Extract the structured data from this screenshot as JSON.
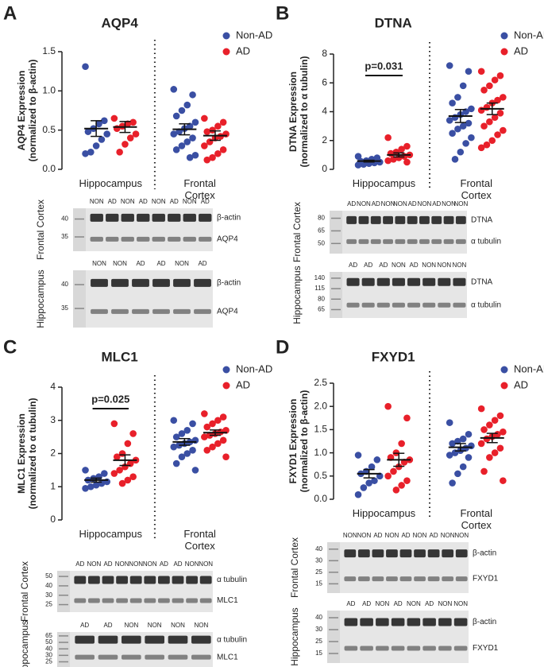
{
  "chart_data": [
    {
      "type": "strip",
      "label": "A",
      "title": "AQP4",
      "ylabel": "AQP4 Expression",
      "ylabel_note": "(normalized to β-actin)",
      "categories": [
        "Hippocampus",
        "Frontal Cortex"
      ],
      "ylim": [
        0,
        1.5
      ],
      "yticks": [
        {
          "value": 0,
          "label": "0.0"
        },
        0.5,
        {
          "value": 1,
          "label": "1.0"
        },
        1.5
      ],
      "series": [
        {
          "name": "Non-AD",
          "color": "#3a4fa3",
          "values": [
            [
              1.31,
              0.62,
              0.58,
              0.52,
              0.48,
              0.45,
              0.38,
              0.3,
              0.22,
              0.2
            ],
            [
              1.02,
              0.95,
              0.82,
              0.75,
              0.68,
              0.6,
              0.55,
              0.52,
              0.48,
              0.45,
              0.4,
              0.35,
              0.3,
              0.25,
              0.18,
              0.15
            ]
          ],
          "mean": [
            0.52,
            0.51
          ],
          "sem": [
            0.1,
            0.07
          ]
        },
        {
          "name": "AD",
          "color": "#e8202a",
          "values": [
            [
              0.65,
              0.6,
              0.58,
              0.55,
              0.52,
              0.45,
              0.4,
              0.32,
              0.22
            ],
            [
              0.65,
              0.6,
              0.55,
              0.5,
              0.48,
              0.45,
              0.42,
              0.4,
              0.35,
              0.3,
              0.25,
              0.2,
              0.15,
              0.12
            ]
          ],
          "mean": [
            0.54,
            0.43
          ],
          "sem": [
            0.07,
            0.06
          ]
        }
      ]
    },
    {
      "type": "strip",
      "label": "B",
      "title": "DTNA",
      "ylabel": "DTNA Expression",
      "ylabel_note": "(normalized to α tubulin)",
      "categories": [
        "Hippocampus",
        "Frontal Cortex"
      ],
      "ylim": [
        0,
        8
      ],
      "yticks": [
        0,
        2,
        4,
        6,
        8
      ],
      "annotation": "p=0.031",
      "series": [
        {
          "name": "Non-AD",
          "color": "#3a4fa3",
          "values": [
            [
              0.9,
              0.8,
              0.7,
              0.6,
              0.55,
              0.5,
              0.45,
              0.4,
              0.35,
              0.3
            ],
            [
              7.2,
              6.8,
              5.8,
              5.0,
              4.6,
              4.2,
              4.0,
              3.8,
              3.6,
              3.4,
              3.2,
              3.0,
              2.8,
              2.5,
              2.2,
              1.8,
              1.2,
              0.7
            ]
          ],
          "mean": [
            0.57,
            3.7
          ],
          "sem": [
            0.06,
            0.45
          ]
        },
        {
          "name": "AD",
          "color": "#e8202a",
          "values": [
            [
              2.2,
              1.6,
              1.4,
              1.2,
              1.1,
              1.0,
              0.9,
              0.8,
              0.7,
              0.6,
              0.5
            ],
            [
              6.8,
              6.5,
              6.2,
              5.8,
              5.5,
              5.0,
              4.8,
              4.6,
              4.3,
              4.1,
              3.9,
              3.6,
              3.3,
              3.0,
              2.7,
              2.4,
              2.0,
              1.7,
              1.5
            ]
          ],
          "mean": [
            1.0,
            4.2
          ],
          "sem": [
            0.14,
            0.4
          ]
        }
      ]
    },
    {
      "type": "strip",
      "label": "C",
      "title": "MLC1",
      "ylabel": "MLC1 Expression",
      "ylabel_note": "(normalized to α tubulin)",
      "categories": [
        "Hippocampus",
        "Frontal Cortex"
      ],
      "ylim": [
        0,
        4
      ],
      "yticks": [
        0,
        1,
        2,
        3,
        4
      ],
      "annotation": "p=0.025",
      "series": [
        {
          "name": "Non-AD",
          "color": "#3a4fa3",
          "values": [
            [
              1.5,
              1.4,
              1.3,
              1.25,
              1.2,
              1.15,
              1.1,
              1.05,
              1.0,
              0.95
            ],
            [
              3.0,
              2.9,
              2.7,
              2.6,
              2.5,
              2.4,
              2.35,
              2.3,
              2.25,
              2.2,
              2.1,
              2.0,
              1.9,
              1.7,
              1.5
            ]
          ],
          "mean": [
            1.2,
            2.35
          ],
          "sem": [
            0.06,
            0.1
          ]
        },
        {
          "name": "AD",
          "color": "#e8202a",
          "values": [
            [
              2.9,
              2.6,
              2.3,
              2.0,
              1.9,
              1.8,
              1.7,
              1.6,
              1.5,
              1.4,
              1.3,
              1.2,
              1.1
            ],
            [
              3.2,
              3.1,
              3.0,
              2.9,
              2.8,
              2.7,
              2.65,
              2.6,
              2.55,
              2.5,
              2.4,
              2.3,
              2.2,
              2.1,
              1.9
            ]
          ],
          "mean": [
            1.8,
            2.63
          ],
          "sem": [
            0.16,
            0.08
          ]
        }
      ]
    },
    {
      "type": "strip",
      "label": "D",
      "title": "FXYD1",
      "ylabel": "FXYD1 Expression",
      "ylabel_note": "(normalized to β-actin)",
      "categories": [
        "Hippocampus",
        "Frontal Cortex"
      ],
      "ylim": [
        0,
        2.5
      ],
      "yticks": [
        {
          "value": 0,
          "label": "0.0"
        },
        0.5,
        {
          "value": 1,
          "label": "1.0"
        },
        1.5,
        {
          "value": 2,
          "label": "2.0"
        },
        2.5
      ],
      "series": [
        {
          "name": "Non-AD",
          "color": "#3a4fa3",
          "values": [
            [
              0.95,
              0.85,
              0.7,
              0.6,
              0.55,
              0.5,
              0.4,
              0.35,
              0.25,
              0.1
            ],
            [
              1.65,
              1.4,
              1.3,
              1.25,
              1.2,
              1.15,
              1.1,
              1.05,
              1.0,
              0.95,
              0.9,
              0.7,
              0.55,
              0.35
            ]
          ],
          "mean": [
            0.55,
            1.12
          ],
          "sem": [
            0.09,
            0.08
          ]
        },
        {
          "name": "AD",
          "color": "#e8202a",
          "values": [
            [
              2.0,
              1.75,
              1.2,
              1.0,
              0.9,
              0.85,
              0.8,
              0.7,
              0.6,
              0.5,
              0.4,
              0.3,
              0.2
            ],
            [
              1.95,
              1.8,
              1.7,
              1.6,
              1.5,
              1.45,
              1.4,
              1.35,
              1.3,
              1.2,
              1.1,
              1.0,
              0.9,
              0.6,
              0.4
            ]
          ],
          "mean": [
            0.85,
            1.32
          ],
          "sem": [
            0.14,
            0.1
          ]
        }
      ]
    }
  ],
  "blots": [
    [
      {
        "region": "Frontal Cortex",
        "ladder": [
          40,
          35
        ],
        "lanes": [
          "NON",
          "AD",
          "NON",
          "AD",
          "NON",
          "AD",
          "NON",
          "AD"
        ],
        "bands": [
          "β-actin",
          "AQP4"
        ]
      },
      {
        "region": "Hippocampus",
        "ladder": [
          40,
          35
        ],
        "lanes": [
          "NON",
          "NON",
          "AD",
          "AD",
          "NON",
          "AD"
        ],
        "bands": [
          "β-actin",
          "AQP4"
        ]
      }
    ],
    [
      {
        "region": "Frontal Cortex",
        "ladder": [
          80,
          65,
          50
        ],
        "lanes": [
          "AD",
          "NON",
          "AD",
          "NON",
          "NON",
          "AD",
          "NON",
          "AD",
          "NON",
          "NON"
        ],
        "bands": [
          "DTNA",
          "α tubulin"
        ]
      },
      {
        "region": "Hippocampus",
        "ladder": [
          140,
          115,
          80,
          65
        ],
        "lanes": [
          "AD",
          "AD",
          "AD",
          "NON",
          "AD",
          "NON",
          "NON",
          "NON"
        ],
        "bands": [
          "DTNA",
          "α tubulin"
        ]
      }
    ],
    [
      {
        "region": "Frontal Cortex",
        "ladder": [
          50,
          40,
          30,
          25
        ],
        "lanes": [
          "AD",
          "NON",
          "AD",
          "NON",
          "NON",
          "NON",
          "AD",
          "AD",
          "NON",
          "NON"
        ],
        "bands": [
          "α tubulin",
          "MLC1"
        ]
      },
      {
        "region": "Hippocampus",
        "ladder": [
          65,
          50,
          40,
          30,
          25
        ],
        "lanes": [
          "AD",
          "AD",
          "NON",
          "NON",
          "NON",
          "NON"
        ],
        "bands": [
          "α tubulin",
          "MLC1"
        ]
      }
    ],
    [
      {
        "region": "Frontal Cortex",
        "ladder": [
          40,
          30,
          25,
          15
        ],
        "lanes": [
          "NON",
          "NON",
          "AD",
          "NON",
          "AD",
          "NON",
          "AD",
          "NON",
          "NON"
        ],
        "bands": [
          "β-actin",
          "FXYD1"
        ]
      },
      {
        "region": "Hippocampus",
        "ladder": [
          40,
          30,
          25,
          15
        ],
        "lanes": [
          "AD",
          "AD",
          "NON",
          "AD",
          "NON",
          "AD",
          "NON",
          "NON"
        ],
        "bands": [
          "β-actin",
          "FXYD1"
        ]
      }
    ]
  ]
}
